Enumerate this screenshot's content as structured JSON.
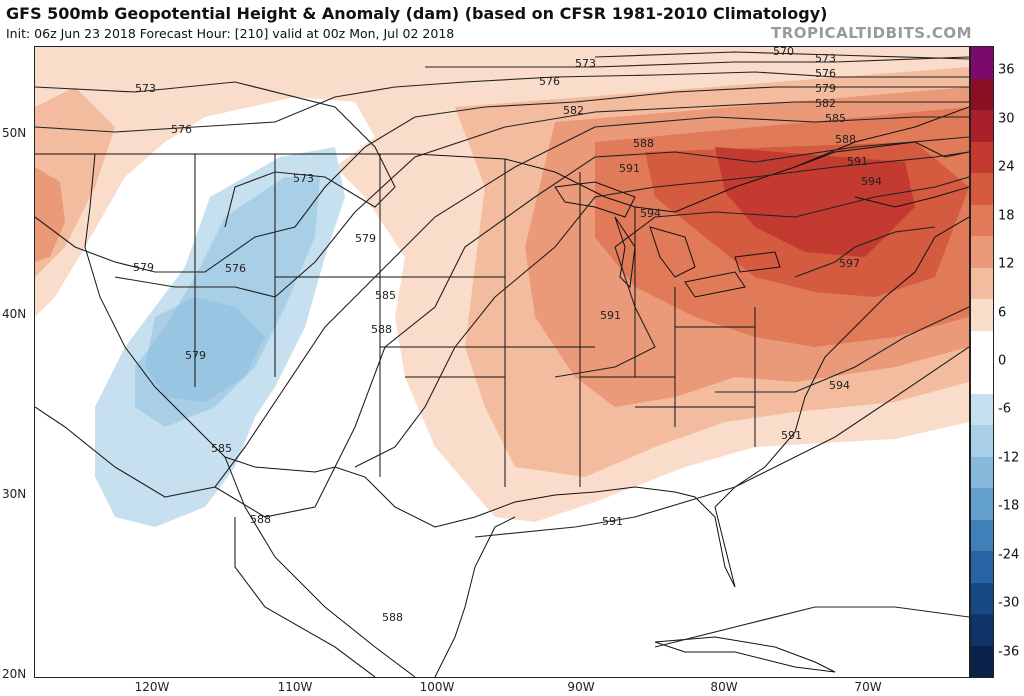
{
  "header": {
    "title": "GFS 500mb Geopotential Height & Anomaly (dam) (based on CFSR 1981-2010 Climatology)",
    "subtitle": "Init: 06z Jun 23 2018   Forecast Hour: [210]   valid at 00z Mon, Jul 02 2018",
    "brand": "TROPICALTIDBITS.COM"
  },
  "axes": {
    "latitudes": [
      "50N",
      "40N",
      "30N",
      "20N"
    ],
    "longitudes": [
      "120W",
      "110W",
      "100W",
      "90W",
      "80W",
      "70W"
    ]
  },
  "colorbar": {
    "ticks": [
      "36",
      "30",
      "24",
      "18",
      "12",
      "6",
      "0",
      "-6",
      "-12",
      "-18",
      "-24",
      "-30",
      "-36"
    ],
    "colors": [
      "#7b0a6e",
      "#8c1024",
      "#a8202a",
      "#c23a30",
      "#d45a40",
      "#e07a58",
      "#ea9a78",
      "#f3bc9e",
      "#fadccb",
      "#ffffff",
      "#ffffff",
      "#c6e0ef",
      "#a8cfe6",
      "#86b9db",
      "#629fcd",
      "#3f80b9",
      "#2863a3",
      "#174985",
      "#0e3468",
      "#08224a"
    ]
  },
  "contour_labels": [
    "570",
    "573",
    "573",
    "576",
    "579",
    "573",
    "576",
    "579",
    "582",
    "585",
    "588",
    "591",
    "594",
    "597",
    "573",
    "576",
    "579",
    "582",
    "585",
    "588",
    "591",
    "594",
    "591",
    "594",
    "591",
    "585",
    "591",
    "588",
    "588",
    "588",
    "579",
    "576"
  ],
  "map_layers": {
    "anomaly_fill": "positive-over-east / negative-over-west",
    "land_borders": "us-states, canada, mexico, caribbean"
  }
}
